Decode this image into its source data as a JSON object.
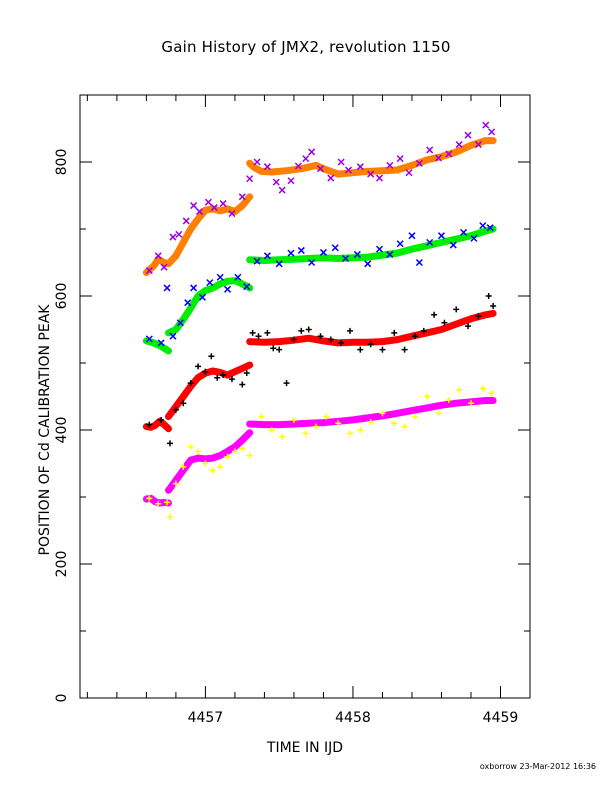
{
  "chart_data": {
    "type": "scatter",
    "title": "Gain History of JMX2, revolution 1150",
    "xlabel": "TIME IN IJD",
    "ylabel": "POSITION OF Cd CALIBRATION PEAK",
    "xlim": [
      4456.15,
      4459.2
    ],
    "ylim": [
      0,
      900
    ],
    "xticks": [
      4457,
      4458,
      4459
    ],
    "yticks": [
      0,
      200,
      400,
      600,
      800
    ],
    "grid": false,
    "footer": "oxborrow 23-Mar-2012 16:36",
    "series": [
      {
        "kind": "fit",
        "color": "#ff7f00",
        "x": [
          4456.6,
          4456.65,
          4456.68,
          4456.72,
          4456.75,
          4456.8,
          4456.85,
          4456.9,
          4456.95,
          4457.0,
          4457.05,
          4457.1,
          4457.15,
          4457.2,
          4457.25,
          4457.3
        ],
        "y": [
          635,
          645,
          655,
          650,
          648,
          660,
          680,
          700,
          715,
          728,
          730,
          727,
          730,
          726,
          735,
          748
        ]
      },
      {
        "kind": "fit",
        "color": "#ff7f00",
        "x": [
          4457.3,
          4457.33,
          4457.38,
          4457.45,
          4457.55,
          4457.65,
          4457.75,
          4457.8,
          4457.9,
          4458.0,
          4458.1,
          4458.2,
          4458.3,
          4458.4,
          4458.5,
          4458.6,
          4458.7,
          4458.8,
          4458.9,
          4458.95
        ],
        "y": [
          798,
          792,
          786,
          785,
          787,
          790,
          795,
          790,
          782,
          784,
          786,
          787,
          788,
          795,
          803,
          808,
          815,
          825,
          832,
          832
        ]
      },
      {
        "kind": "data",
        "color": "#9b00e8",
        "marker": "x",
        "x": [
          4456.62,
          4456.68,
          4456.72,
          4456.78,
          4456.82,
          4456.87,
          4456.92,
          4456.96,
          4457.02,
          4457.06,
          4457.12,
          4457.18,
          4457.25,
          4457.3,
          4457.35,
          4457.42,
          4457.48,
          4457.52,
          4457.58,
          4457.63,
          4457.68,
          4457.72,
          4457.78,
          4457.85,
          4457.92,
          4457.97,
          4458.05,
          4458.12,
          4458.18,
          4458.25,
          4458.32,
          4458.38,
          4458.45,
          4458.52,
          4458.58,
          4458.65,
          4458.72,
          4458.78,
          4458.85,
          4458.9,
          4458.94
        ],
        "y": [
          638,
          660,
          643,
          688,
          692,
          712,
          735,
          726,
          740,
          732,
          738,
          723,
          748,
          775,
          800,
          793,
          770,
          758,
          772,
          794,
          805,
          815,
          790,
          776,
          800,
          788,
          793,
          782,
          776,
          795,
          805,
          784,
          798,
          818,
          806,
          812,
          826,
          840,
          826,
          855,
          845
        ]
      },
      {
        "kind": "fit",
        "color": "#00ee00",
        "x": [
          4456.6,
          4456.65,
          4456.7,
          4456.75
        ],
        "y": [
          533,
          530,
          525,
          518
        ]
      },
      {
        "kind": "fit",
        "color": "#00ee00",
        "x": [
          4456.75,
          4456.8,
          4456.85,
          4456.9,
          4456.95,
          4457.0,
          4457.05,
          4457.1,
          4457.15,
          4457.2,
          4457.25,
          4457.3
        ],
        "y": [
          545,
          550,
          565,
          582,
          600,
          608,
          612,
          618,
          622,
          623,
          618,
          612
        ]
      },
      {
        "kind": "fit",
        "color": "#00ee00",
        "x": [
          4457.3,
          4457.4,
          4457.5,
          4457.6,
          4457.7,
          4457.8,
          4457.9,
          4458.0,
          4458.1,
          4458.2,
          4458.3,
          4458.4,
          4458.5,
          4458.6,
          4458.7,
          4458.8,
          4458.9,
          4458.95
        ],
        "y": [
          654,
          653,
          654,
          655,
          656,
          657,
          656,
          657,
          658,
          661,
          664,
          670,
          675,
          680,
          685,
          690,
          697,
          700
        ]
      },
      {
        "kind": "data",
        "color": "#0000ff",
        "marker": "x",
        "x": [
          4456.62,
          4456.7,
          4456.74,
          4456.78,
          4456.83,
          4456.88,
          4456.92,
          4456.98,
          4457.03,
          4457.1,
          4457.15,
          4457.22,
          4457.28,
          4457.35,
          4457.42,
          4457.5,
          4457.58,
          4457.65,
          4457.72,
          4457.8,
          4457.88,
          4457.95,
          4458.03,
          4458.1,
          4458.18,
          4458.25,
          4458.32,
          4458.4,
          4458.45,
          4458.52,
          4458.6,
          4458.68,
          4458.75,
          4458.82,
          4458.88,
          4458.93
        ],
        "y": [
          536,
          530,
          612,
          540,
          560,
          590,
          612,
          598,
          620,
          628,
          610,
          628,
          614,
          652,
          660,
          648,
          664,
          668,
          650,
          665,
          672,
          656,
          662,
          648,
          670,
          662,
          678,
          690,
          650,
          680,
          690,
          676,
          695,
          686,
          705,
          702
        ]
      },
      {
        "kind": "fit",
        "color": "#ff0000",
        "x": [
          4456.6,
          4456.63,
          4456.66,
          4456.69,
          4456.72,
          4456.75
        ],
        "y": [
          405,
          404,
          407,
          413,
          408,
          402
        ]
      },
      {
        "kind": "fit",
        "color": "#ff0000",
        "x": [
          4456.75,
          4456.8,
          4456.85,
          4456.9,
          4456.95,
          4457.0,
          4457.05,
          4457.1,
          4457.15,
          4457.2,
          4457.25,
          4457.3
        ],
        "y": [
          420,
          435,
          450,
          465,
          478,
          485,
          488,
          486,
          482,
          487,
          492,
          497
        ]
      },
      {
        "kind": "fit",
        "color": "#ff0000",
        "x": [
          4457.3,
          4457.4,
          4457.5,
          4457.6,
          4457.7,
          4457.8,
          4457.9,
          4458.0,
          4458.1,
          4458.2,
          4458.3,
          4458.4,
          4458.5,
          4458.6,
          4458.7,
          4458.8,
          4458.9,
          4458.95
        ],
        "y": [
          532,
          531,
          532,
          534,
          537,
          533,
          530,
          531,
          531,
          532,
          535,
          540,
          545,
          550,
          558,
          566,
          572,
          574
        ]
      },
      {
        "kind": "data",
        "color": "#000000",
        "marker": "+",
        "x": [
          4456.62,
          4456.7,
          4456.76,
          4456.8,
          4456.85,
          4456.9,
          4456.95,
          4457.0,
          4457.04,
          4457.08,
          4457.12,
          4457.18,
          4457.25,
          4457.28,
          4457.32,
          4457.36,
          4457.42,
          4457.46,
          4457.5,
          4457.55,
          4457.6,
          4457.65,
          4457.7,
          4457.78,
          4457.85,
          4457.92,
          4457.98,
          4458.05,
          4458.12,
          4458.2,
          4458.28,
          4458.35,
          4458.42,
          4458.48,
          4458.55,
          4458.62,
          4458.7,
          4458.78,
          4458.85,
          4458.92,
          4458.95
        ],
        "y": [
          408,
          415,
          380,
          430,
          440,
          470,
          495,
          487,
          510,
          478,
          482,
          476,
          468,
          485,
          545,
          540,
          545,
          522,
          520,
          470,
          535,
          548,
          550,
          540,
          535,
          530,
          548,
          520,
          528,
          520,
          545,
          520,
          540,
          548,
          572,
          560,
          580,
          555,
          570,
          600,
          585
        ]
      },
      {
        "kind": "fit",
        "color": "#ff00ff",
        "x": [
          4456.6,
          4456.63,
          4456.66,
          4456.69,
          4456.72,
          4456.75
        ],
        "y": [
          297,
          298,
          293,
          291,
          292,
          291
        ]
      },
      {
        "kind": "fit",
        "color": "#ff00ff",
        "x": [
          4456.75,
          4456.8,
          4456.85,
          4456.9,
          4456.95,
          4457.0,
          4457.05,
          4457.1,
          4457.15,
          4457.2,
          4457.25,
          4457.3
        ],
        "y": [
          310,
          325,
          340,
          355,
          358,
          357,
          358,
          362,
          368,
          375,
          385,
          396
        ]
      },
      {
        "kind": "fit",
        "color": "#ff00ff",
        "x": [
          4457.3,
          4457.4,
          4457.5,
          4457.6,
          4457.7,
          4457.8,
          4457.9,
          4458.0,
          4458.1,
          4458.2,
          4458.3,
          4458.4,
          4458.5,
          4458.6,
          4458.7,
          4458.8,
          4458.9,
          4458.95
        ],
        "y": [
          409,
          408,
          408,
          409,
          410,
          411,
          413,
          415,
          418,
          421,
          425,
          429,
          433,
          437,
          440,
          442,
          444,
          444
        ]
      },
      {
        "kind": "data",
        "color": "#ffff00",
        "marker": "+",
        "x": [
          4456.62,
          4456.68,
          4456.74,
          4456.76,
          4456.8,
          4456.85,
          4456.9,
          4456.95,
          4457.0,
          4457.05,
          4457.1,
          4457.15,
          4457.2,
          4457.25,
          4457.3,
          4457.38,
          4457.45,
          4457.52,
          4457.6,
          4457.68,
          4457.75,
          4457.82,
          4457.9,
          4457.98,
          4458.05,
          4458.12,
          4458.2,
          4458.28,
          4458.35,
          4458.42,
          4458.5,
          4458.58,
          4458.65,
          4458.72,
          4458.8,
          4458.88,
          4458.94
        ],
        "y": [
          298,
          290,
          292,
          270,
          320,
          345,
          375,
          368,
          350,
          340,
          345,
          360,
          368,
          372,
          362,
          420,
          400,
          390,
          415,
          395,
          405,
          420,
          410,
          395,
          400,
          412,
          425,
          410,
          405,
          420,
          450,
          425,
          445,
          460,
          440,
          462,
          455
        ]
      }
    ]
  }
}
